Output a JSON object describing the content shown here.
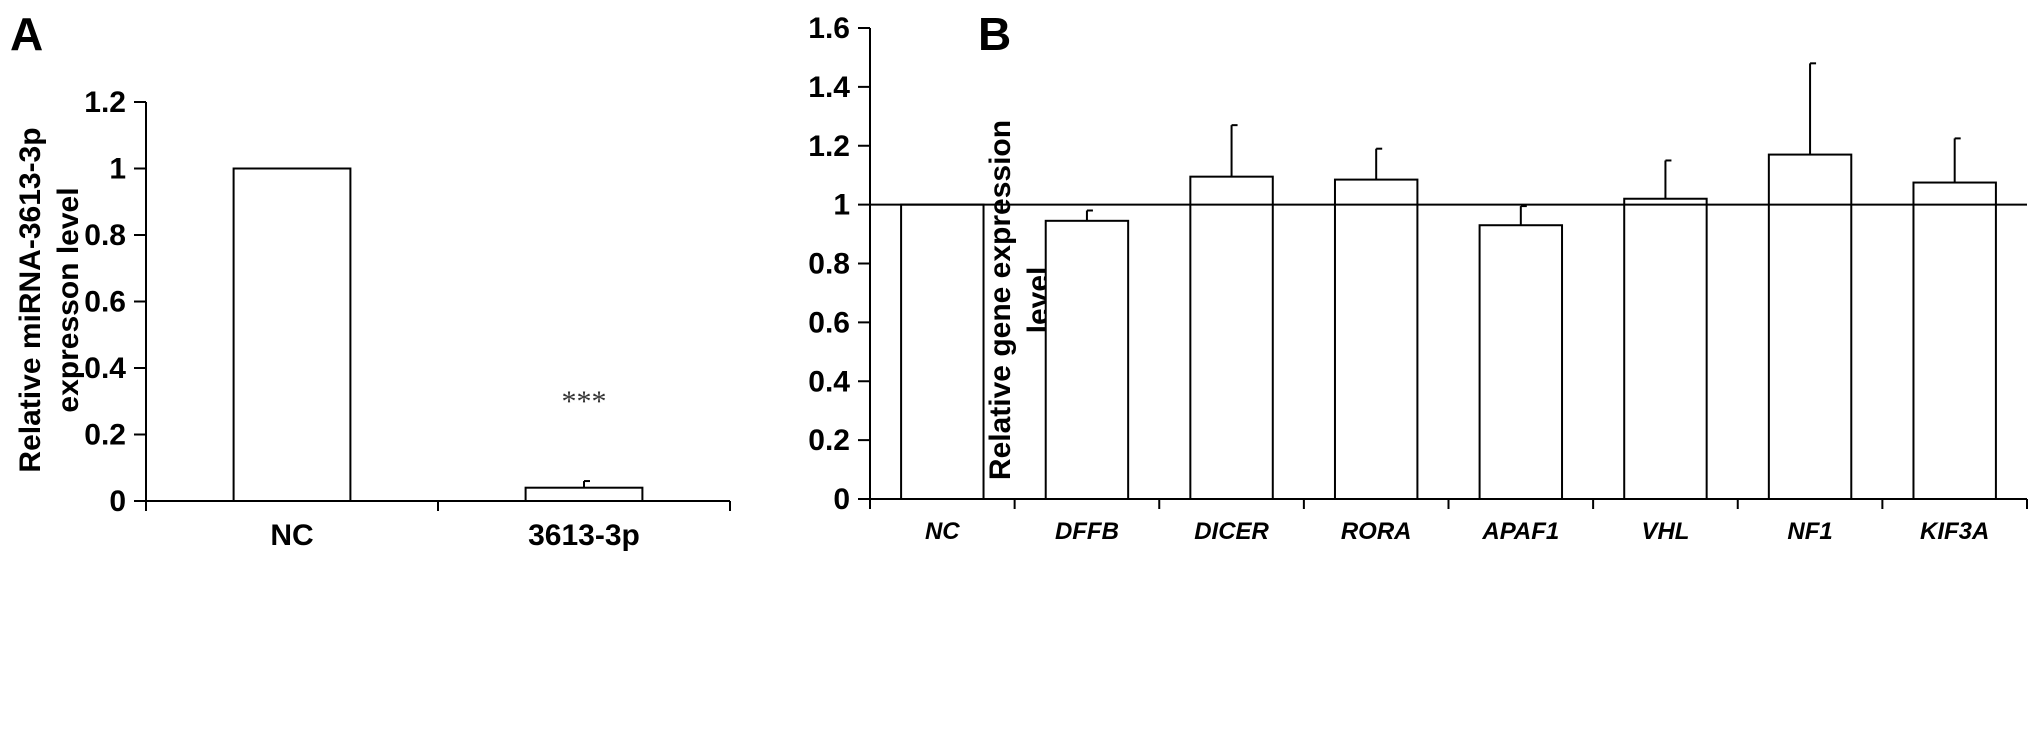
{
  "chart_data": [
    {
      "panel": "A",
      "type": "bar",
      "categories": [
        "NC",
        "3613-3p"
      ],
      "values": [
        1.0,
        0.04
      ],
      "errors": [
        0.0,
        0.02
      ],
      "annotations": [
        "",
        "***"
      ],
      "ylabel": [
        "Relative miRNA-3613-3p",
        "expresson level"
      ],
      "xlabel": "",
      "ylim": [
        0,
        1.2
      ],
      "yticks": [
        "0",
        "0.2",
        "0.4",
        "0.6",
        "0.8",
        "1",
        "1.2"
      ],
      "bar_fill": "#ffffff",
      "bar_stroke": "#000000",
      "grid": false
    },
    {
      "panel": "B",
      "type": "bar",
      "categories": [
        "NC",
        "DFFB",
        "DICER",
        "RORA",
        "APAF1",
        "VHL",
        "NF1",
        "KIF3A"
      ],
      "values": [
        1.0,
        0.945,
        1.095,
        1.085,
        0.93,
        1.02,
        1.17,
        1.075
      ],
      "errors": [
        0.0,
        0.035,
        0.175,
        0.105,
        0.065,
        0.13,
        0.31,
        0.15
      ],
      "reference_line": 1,
      "ylabel": [
        "Relative gene expression",
        "level"
      ],
      "xlabel": "",
      "ylim": [
        0,
        1.6
      ],
      "yticks": [
        "0",
        "0.2",
        "0.4",
        "0.6",
        "0.8",
        "1",
        "1.2",
        "1.4",
        "1.6"
      ],
      "bar_fill": "#ffffff",
      "bar_stroke": "#000000",
      "grid": false
    }
  ]
}
